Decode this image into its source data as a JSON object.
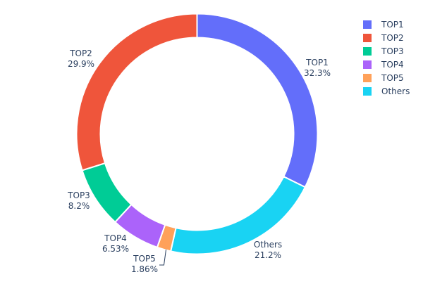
{
  "chart_data": {
    "type": "pie",
    "hole": true,
    "labels": [
      "TOP1",
      "TOP2",
      "TOP3",
      "TOP4",
      "TOP5",
      "Others"
    ],
    "values": [
      32.3,
      29.9,
      8.2,
      6.53,
      1.86,
      21.2
    ],
    "percent_text": [
      "32.3%",
      "29.9%",
      "8.2%",
      "6.53%",
      "1.86%",
      "21.2%"
    ],
    "colors": [
      "#636efa",
      "#EF553B",
      "#00cc96",
      "#ab63fa",
      "#FFA15A",
      "#19d3f3"
    ],
    "clockwise_order_from_top": [
      "TOP1",
      "Others",
      "TOP5",
      "TOP4",
      "TOP3",
      "TOP2"
    ],
    "legend": {
      "placement": "top-right",
      "entries": [
        "TOP1",
        "TOP2",
        "TOP3",
        "TOP4",
        "TOP5",
        "Others"
      ]
    }
  }
}
